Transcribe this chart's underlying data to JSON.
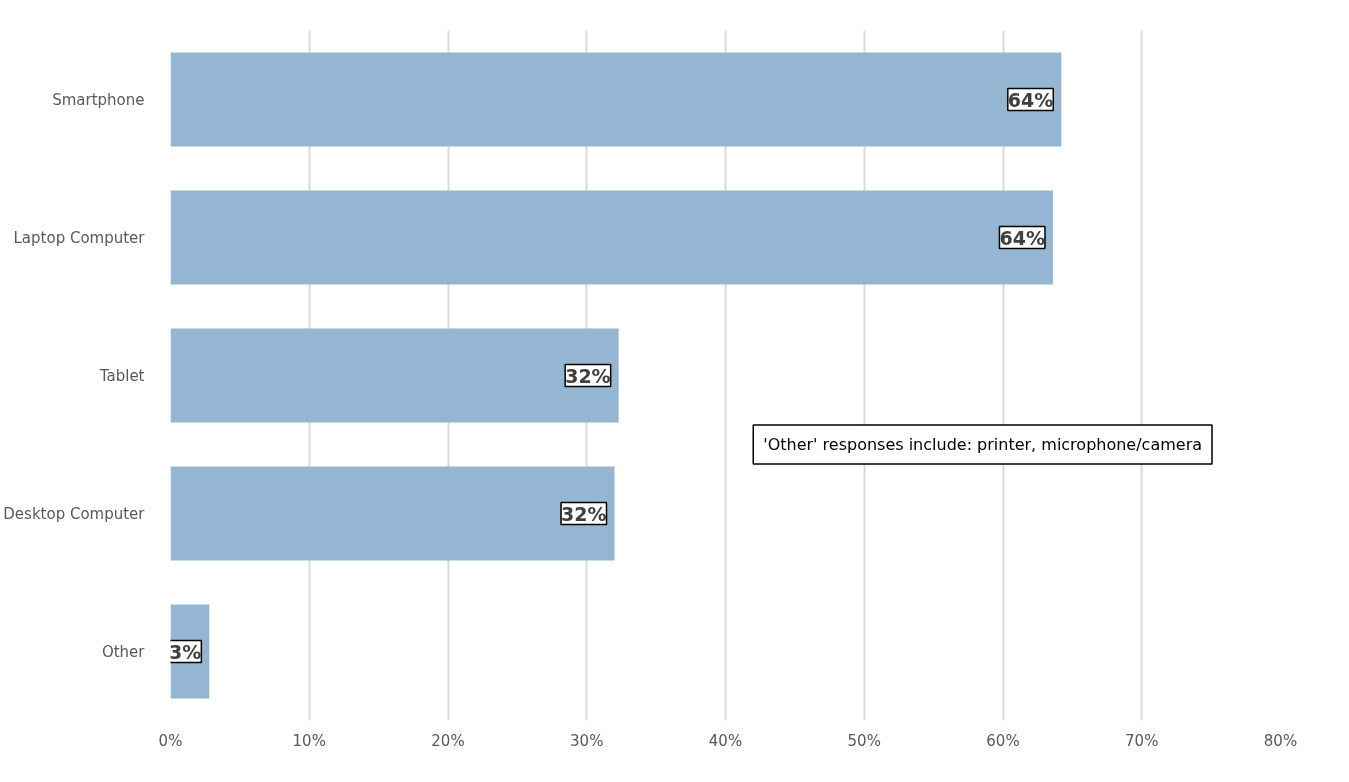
{
  "chart_data": {
    "type": "bar",
    "orientation": "horizontal",
    "categories": [
      "Smartphone",
      "Laptop Computer",
      "Tablet",
      "Desktop Computer",
      "Other"
    ],
    "values": [
      64.2,
      63.6,
      32.3,
      32.0,
      2.8
    ],
    "value_labels": [
      "64%",
      "64%",
      "32%",
      "32%",
      "3%"
    ],
    "color": "#95b6d3",
    "xlim": [
      0,
      80
    ],
    "xticks": [
      {
        "value": 0,
        "label": "0%"
      },
      {
        "value": 10,
        "label": "10%"
      },
      {
        "value": 20,
        "label": "20%"
      },
      {
        "value": 30,
        "label": "30%"
      },
      {
        "value": 40,
        "label": "40%"
      },
      {
        "value": 50,
        "label": "50%"
      },
      {
        "value": 60,
        "label": "60%"
      },
      {
        "value": 70,
        "label": "70%"
      },
      {
        "value": 80,
        "label": "80%"
      }
    ],
    "grid": "x",
    "annotations": [
      "'Other' responses include: printer, microphone/camera"
    ]
  }
}
